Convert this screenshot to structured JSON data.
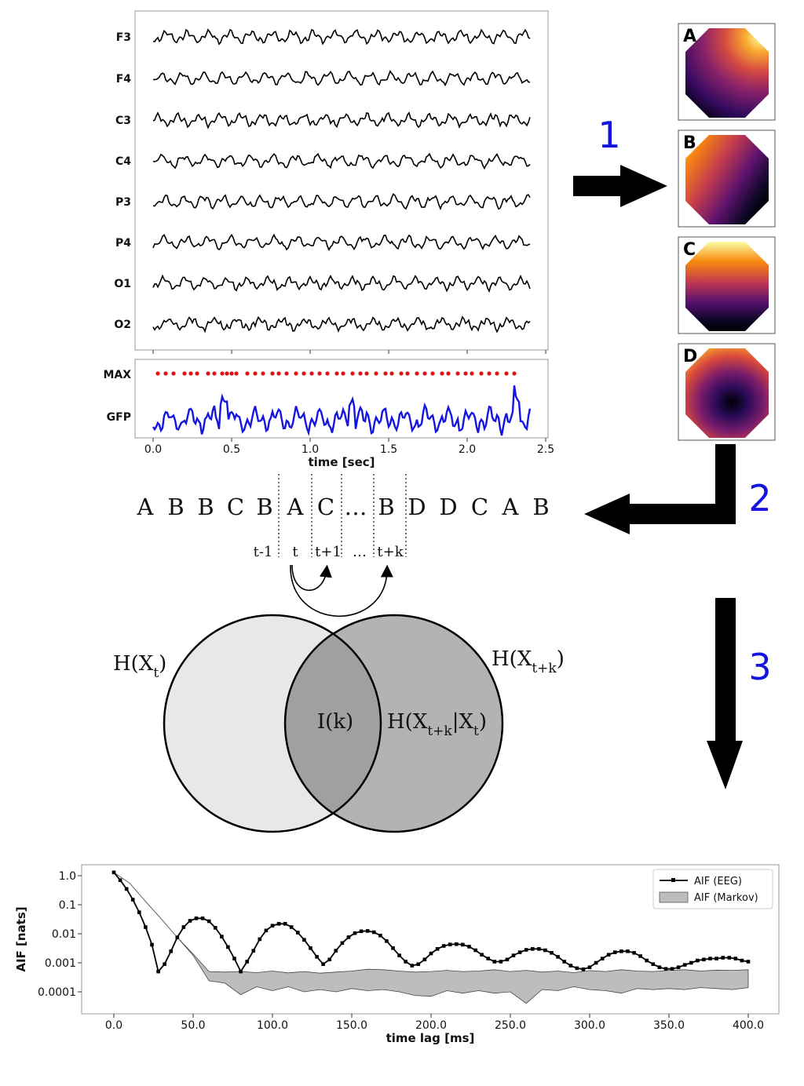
{
  "eeg": {
    "channels": [
      "F3",
      "F4",
      "C3",
      "C4",
      "P3",
      "P4",
      "O1",
      "O2"
    ],
    "max_label": "MAX",
    "gfp_label": "GFP",
    "x_ticks": [
      "0.0",
      "0.5",
      "1.0",
      "1.5",
      "2.0",
      "2.5"
    ],
    "x_label": "time [sec]"
  },
  "maps": [
    {
      "label": "A"
    },
    {
      "label": "B"
    },
    {
      "label": "C"
    },
    {
      "label": "D"
    }
  ],
  "steps": [
    "1",
    "2",
    "3"
  ],
  "sequence": {
    "letters": [
      "A",
      "B",
      "B",
      "C",
      "B",
      "A",
      "C",
      "…",
      "B",
      "D",
      "D",
      "C",
      "A",
      "B"
    ],
    "time_labels": [
      "t-1",
      "t",
      "t+1",
      "…",
      "t+k"
    ]
  },
  "venn": {
    "left": "H(X",
    "left_sub": "t",
    "left_close": ")",
    "right": "H(X",
    "right_sub": "t+k",
    "right_close": ")",
    "center": "I(k)",
    "cond_pre": "H(X",
    "cond_sub1": "t+k",
    "cond_mid": "|X",
    "cond_sub2": "t",
    "cond_close": ")"
  },
  "chart_data": {
    "type": "line",
    "xlabel": "time lag [ms]",
    "ylabel": "AIF [nats]",
    "x_ticks": [
      "0.0",
      "50.0",
      "100.0",
      "150.0",
      "200.0",
      "250.0",
      "300.0",
      "350.0",
      "400.0"
    ],
    "y_ticks": [
      "1.0",
      "0.1",
      "0.01",
      "0.001",
      "0.0001"
    ],
    "y_scale": "log",
    "xlim": [
      -20,
      420
    ],
    "legend_position": "top-right",
    "series": [
      {
        "name": "AIF (EEG)",
        "x": [
          0,
          4,
          8,
          12,
          16,
          20,
          24,
          28,
          32,
          36,
          40,
          44,
          48,
          52,
          56,
          60,
          64,
          68,
          72,
          76,
          80,
          84,
          88,
          92,
          96,
          100,
          104,
          108,
          112,
          116,
          120,
          124,
          128,
          132,
          136,
          140,
          144,
          148,
          152,
          156,
          160,
          164,
          168,
          172,
          176,
          180,
          184,
          188,
          192,
          196,
          200,
          204,
          208,
          212,
          216,
          220,
          224,
          228,
          232,
          236,
          240,
          244,
          248,
          252,
          256,
          260,
          264,
          268,
          272,
          276,
          280,
          284,
          288,
          292,
          296,
          300,
          304,
          308,
          312,
          316,
          320,
          324,
          328,
          332,
          336,
          340,
          344,
          348,
          352,
          356,
          360,
          364,
          368,
          372,
          376,
          380,
          384,
          388,
          392,
          396,
          400
        ],
        "y": [
          1.3,
          0.7,
          0.35,
          0.15,
          0.055,
          0.017,
          0.0042,
          0.0005,
          0.0009,
          0.0025,
          0.0075,
          0.017,
          0.028,
          0.034,
          0.034,
          0.027,
          0.016,
          0.008,
          0.0035,
          0.0014,
          0.0005,
          0.0011,
          0.0026,
          0.0065,
          0.013,
          0.019,
          0.022,
          0.022,
          0.017,
          0.011,
          0.0062,
          0.0032,
          0.0016,
          0.0009,
          0.0013,
          0.0026,
          0.0048,
          0.0076,
          0.0105,
          0.0122,
          0.0125,
          0.0113,
          0.0087,
          0.0056,
          0.0032,
          0.0018,
          0.0011,
          0.0008,
          0.0009,
          0.0013,
          0.0021,
          0.003,
          0.0038,
          0.0043,
          0.0044,
          0.0042,
          0.0036,
          0.0027,
          0.0019,
          0.0014,
          0.0011,
          0.0011,
          0.0013,
          0.0018,
          0.0023,
          0.0028,
          0.003,
          0.003,
          0.0027,
          0.0022,
          0.0016,
          0.0011,
          0.0008,
          0.00065,
          0.0006,
          0.0007,
          0.001,
          0.0014,
          0.0019,
          0.0023,
          0.0025,
          0.0025,
          0.0022,
          0.0017,
          0.0012,
          0.0009,
          0.0007,
          0.00062,
          0.00062,
          0.0007,
          0.00085,
          0.001,
          0.0012,
          0.0013,
          0.0014,
          0.0014,
          0.0015,
          0.0015,
          0.0014,
          0.0012,
          0.0011
        ],
        "color": "#000000"
      },
      {
        "name": "AIF (Markov)",
        "x": [
          0,
          10,
          20,
          30,
          40,
          50,
          60,
          70,
          80,
          90,
          100,
          110,
          120,
          130,
          140,
          150,
          160,
          170,
          180,
          190,
          200,
          210,
          220,
          230,
          240,
          250,
          260,
          270,
          280,
          290,
          300,
          310,
          320,
          330,
          340,
          350,
          360,
          370,
          380,
          390,
          400
        ],
        "y_upper": [
          1.3,
          0.55,
          0.13,
          0.032,
          0.0075,
          0.002,
          0.0005,
          0.00048,
          0.0005,
          0.00046,
          0.00052,
          0.00045,
          0.0005,
          0.00044,
          0.00048,
          0.00052,
          0.0006,
          0.00058,
          0.00052,
          0.00048,
          0.0005,
          0.00055,
          0.0005,
          0.00052,
          0.00058,
          0.0005,
          0.00055,
          0.00048,
          0.00052,
          0.00046,
          0.00054,
          0.0005,
          0.00058,
          0.00052,
          0.0005,
          0.00055,
          0.00058,
          0.00052,
          0.00056,
          0.00055,
          0.00058
        ],
        "y_lower": [
          1.3,
          0.55,
          0.13,
          0.032,
          0.0075,
          0.0018,
          0.00024,
          0.0002,
          8e-05,
          0.00015,
          0.00011,
          0.00015,
          0.0001,
          0.00012,
          0.0001,
          0.00013,
          0.00011,
          0.00012,
          0.0001,
          7.5e-05,
          7e-05,
          0.00011,
          9e-05,
          0.00011,
          9e-05,
          0.0001,
          4e-05,
          0.00012,
          0.00011,
          0.00015,
          0.00012,
          0.00011,
          9e-05,
          0.00013,
          0.00012,
          0.00013,
          0.00012,
          0.00014,
          0.00013,
          0.00012,
          0.00014
        ],
        "color": "#bdbdbd"
      }
    ]
  }
}
